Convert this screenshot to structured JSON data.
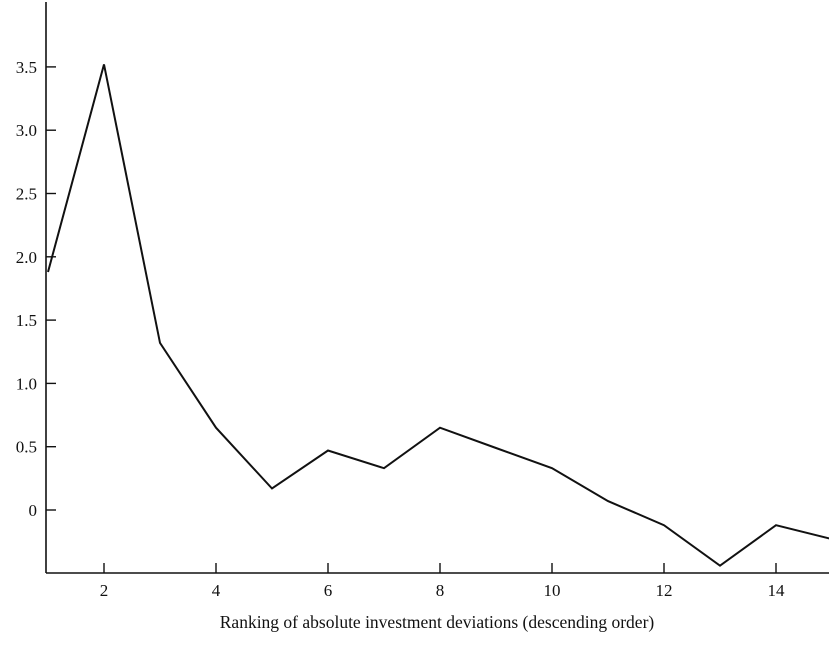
{
  "chart_data": {
    "type": "line",
    "title": "",
    "xlabel": "Ranking of absolute investment deviations (descending order)",
    "ylabel": "",
    "xlim": [
      1,
      15
    ],
    "ylim": [
      -0.45,
      4.0
    ],
    "x_ticks": [
      2,
      4,
      6,
      8,
      10,
      12,
      14
    ],
    "x_tick_labels": [
      "2",
      "4",
      "6",
      "8",
      "10",
      "12",
      "14"
    ],
    "y_ticks": [
      0,
      0.5,
      1.0,
      1.5,
      2.0,
      2.5,
      3.0,
      3.5
    ],
    "y_tick_labels": [
      "0",
      "0.5",
      "1.0",
      "1.5",
      "2.0",
      "2.5",
      "3.0",
      "3.5"
    ],
    "grid": false,
    "legend": "none",
    "series": [
      {
        "x": [
          1,
          2,
          3,
          4,
          5,
          6,
          7,
          8,
          9,
          10,
          11,
          12,
          13,
          14,
          15
        ],
        "values": [
          1.88,
          3.52,
          1.32,
          0.65,
          0.17,
          0.47,
          0.33,
          0.65,
          0.49,
          0.33,
          0.07,
          -0.12,
          -0.44,
          -0.12,
          -0.23
        ]
      }
    ]
  }
}
